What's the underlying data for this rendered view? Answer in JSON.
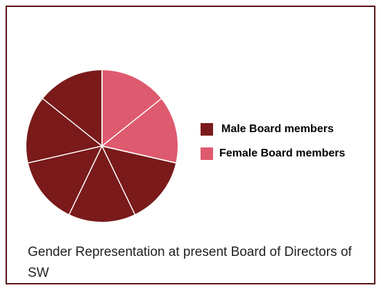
{
  "chart_data": {
    "type": "pie",
    "title": "Gender Representation at present Board of Directors of SW",
    "categories": [
      "Male Board members",
      "Female Board members"
    ],
    "values": [
      5,
      2
    ],
    "colors": [
      "#7a1a1a",
      "#de5a6e"
    ],
    "legend": "right"
  }
}
